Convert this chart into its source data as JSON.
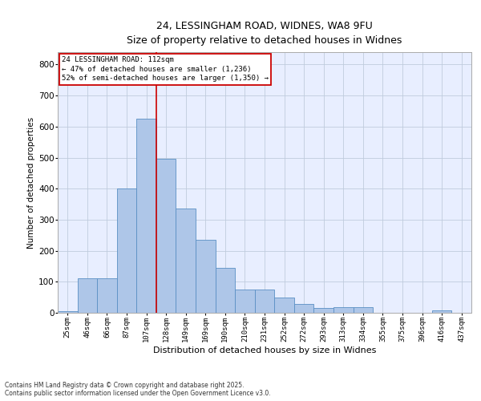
{
  "title_line1": "24, LESSINGHAM ROAD, WIDNES, WA8 9FU",
  "title_line2": "Size of property relative to detached houses in Widnes",
  "xlabel": "Distribution of detached houses by size in Widnes",
  "ylabel": "Number of detached properties",
  "bar_labels": [
    "25sqm",
    "46sqm",
    "66sqm",
    "87sqm",
    "107sqm",
    "128sqm",
    "149sqm",
    "169sqm",
    "190sqm",
    "210sqm",
    "231sqm",
    "252sqm",
    "272sqm",
    "293sqm",
    "313sqm",
    "334sqm",
    "355sqm",
    "375sqm",
    "396sqm",
    "416sqm",
    "437sqm"
  ],
  "bar_values": [
    5,
    110,
    110,
    400,
    625,
    495,
    335,
    235,
    145,
    75,
    75,
    50,
    28,
    15,
    18,
    18,
    0,
    0,
    0,
    8,
    0
  ],
  "bar_color": "#aec6e8",
  "bar_edge_color": "#5a8fc4",
  "vline_x_idx": 4,
  "vline_color": "#cc0000",
  "ylim": [
    0,
    840
  ],
  "yticks": [
    0,
    100,
    200,
    300,
    400,
    500,
    600,
    700,
    800
  ],
  "annotation_title": "24 LESSINGHAM ROAD: 112sqm",
  "annotation_line2": "← 47% of detached houses are smaller (1,236)",
  "annotation_line3": "52% of semi-detached houses are larger (1,350) →",
  "annotation_box_color": "#cc0000",
  "footer_line1": "Contains HM Land Registry data © Crown copyright and database right 2025.",
  "footer_line2": "Contains public sector information licensed under the Open Government Licence v3.0.",
  "bg_color": "#e8eeff",
  "grid_color": "#c0ccdd"
}
